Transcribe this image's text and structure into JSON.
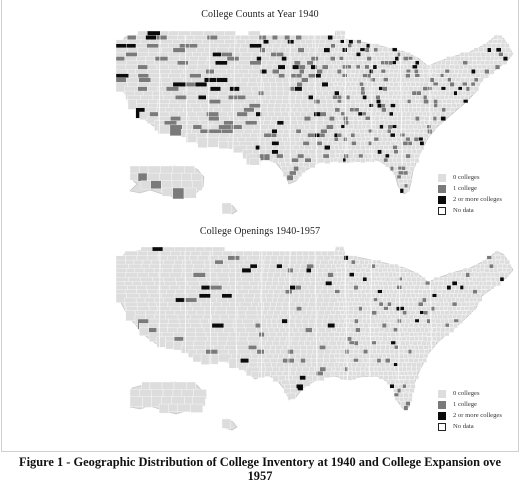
{
  "figure": {
    "caption_line1": "Figure 1 - Geographic Distribution of College Inventory at 1940 and College Expansion ove",
    "caption_line2": "1957"
  },
  "colors": {
    "none": "#dddddd",
    "one": "#7a7a7a",
    "two_plus": "#0a0a0a",
    "no_data": "#ffffff",
    "border": "#ffffff"
  },
  "maps": [
    {
      "id": "counts-1940",
      "title": "College Counts at Year 1940",
      "density": {
        "one": 0.11,
        "two_plus": 0.06
      },
      "legend": [
        {
          "key": "none",
          "label": "0 colleges"
        },
        {
          "key": "one",
          "label": "1 college"
        },
        {
          "key": "two_plus",
          "label": "2 or more colleges"
        },
        {
          "key": "no_data",
          "label": "No data"
        }
      ]
    },
    {
      "id": "openings-1940-1957",
      "title": "College Openings 1940-1957",
      "density": {
        "one": 0.05,
        "two_plus": 0.02
      },
      "legend": [
        {
          "key": "none",
          "label": "0 colleges"
        },
        {
          "key": "one",
          "label": "1 college"
        },
        {
          "key": "two_plus",
          "label": "2 or more colleges"
        },
        {
          "key": "no_data",
          "label": "No data"
        }
      ]
    }
  ]
}
